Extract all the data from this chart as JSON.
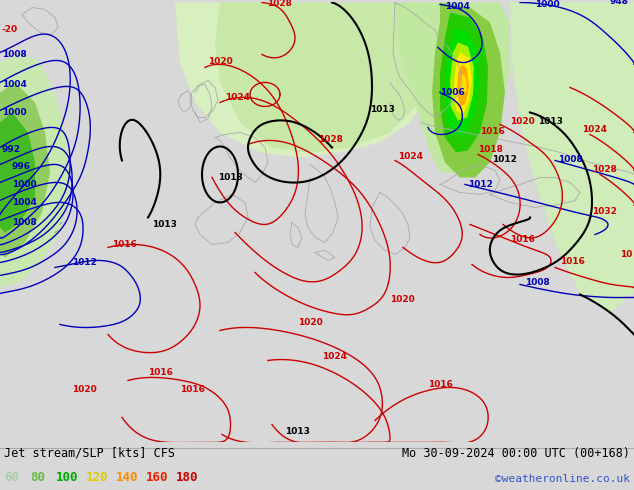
{
  "title_left": "Jet stream/SLP [kts] CFS",
  "title_right": "Mo 30-09-2024 00:00 UTC (00+168)",
  "credit": "©weatheronline.co.uk",
  "legend_values": [
    60,
    80,
    100,
    120,
    140,
    160,
    180
  ],
  "legend_colors": [
    "#aaccaa",
    "#66bb44",
    "#00aa00",
    "#ddcc00",
    "#ff8800",
    "#ee2200",
    "#cc0000"
  ],
  "bg_color": "#e8e8e8",
  "map_bg": "#f0f0f0",
  "land_gray": "#c8c8c8",
  "sea_gray": "#e0e0e0",
  "coast_color": "#aaaaaa",
  "red_col": "#cc0000",
  "blue_col": "#0000bb",
  "black_col": "#000000",
  "green_light": "#d4edc0",
  "green_med": "#90d060",
  "green_dark": "#22aa00",
  "green_bright": "#00cc00",
  "yellow_col": "#ffee00",
  "orange_col": "#ff8800"
}
